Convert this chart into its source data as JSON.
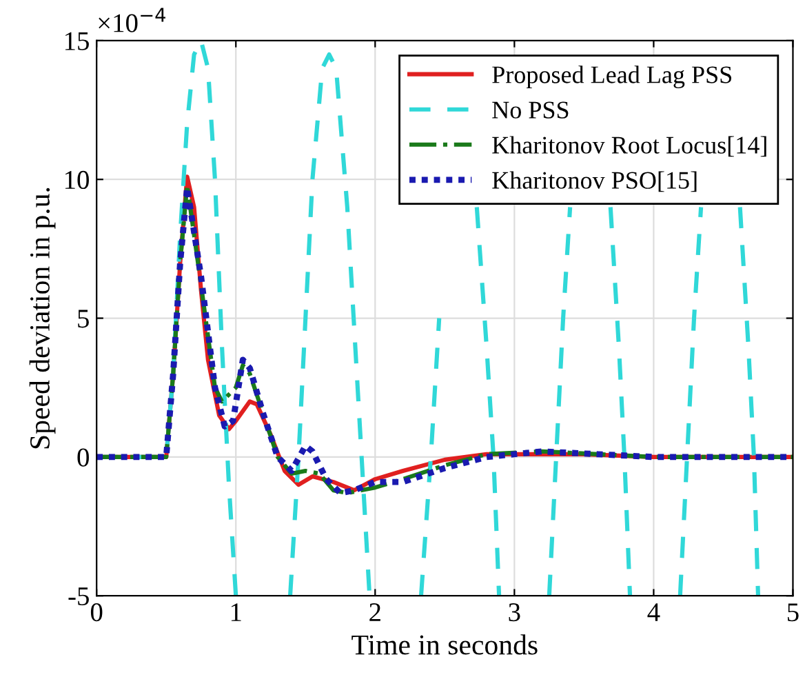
{
  "chart_data": {
    "type": "line",
    "xlabel": "Time in seconds",
    "ylabel": "Speed deviation in p.u.",
    "annotations": [
      "×10$^{−4}$"
    ],
    "xlim": [
      0,
      5
    ],
    "xticks": [
      0,
      1,
      2,
      3,
      4,
      5
    ],
    "ylim": [
      -5,
      15
    ],
    "yticks": [
      -5,
      0,
      5,
      10,
      15
    ],
    "grid": true,
    "legend": "top right",
    "marker": "none",
    "series": [
      {
        "name": "Proposed Lead Lag PSS",
        "color": "#e02020",
        "line_style": "solid",
        "x": [
          0,
          0.5,
          0.55,
          0.6,
          0.65,
          0.7,
          0.75,
          0.8,
          0.88,
          0.95,
          1.0,
          1.1,
          1.15,
          1.25,
          1.35,
          1.45,
          1.55,
          1.7,
          1.85,
          2.0,
          2.2,
          2.5,
          2.8,
          3.1,
          3.5,
          4,
          5
        ],
        "values": [
          0,
          0,
          3,
          7,
          10.1,
          9,
          6,
          3.5,
          1.5,
          1.0,
          1.3,
          2.0,
          1.9,
          0.8,
          -0.5,
          -1.0,
          -0.7,
          -0.9,
          -1.2,
          -0.8,
          -0.5,
          -0.1,
          0.1,
          0.1,
          0.1,
          0,
          0
        ]
      },
      {
        "name": "No PSS",
        "color": "#30d8d8",
        "line_style": "dashed",
        "x": [
          0,
          0.5,
          0.55,
          0.6,
          0.65,
          0.7,
          0.75,
          0.8,
          0.85,
          0.9,
          0.95,
          1.0,
          1.1,
          1.39,
          1.45,
          1.5,
          1.55,
          1.62,
          1.67,
          1.72,
          1.8,
          1.88,
          1.96,
          2.1,
          2.33,
          2.4,
          2.46,
          2.53,
          2.58,
          2.62,
          2.73,
          2.8,
          2.85,
          2.89,
          3.0,
          3.25,
          3.3,
          3.35,
          3.4,
          3.5,
          3.69,
          3.75,
          3.79,
          3.83,
          4.0,
          4.19,
          4.24,
          4.29,
          4.34,
          4.5,
          4.62,
          4.68,
          4.72,
          4.75
        ],
        "values": [
          0,
          0,
          3,
          8,
          12,
          14.5,
          15,
          14,
          10,
          4,
          -1,
          -5,
          null,
          -5,
          0,
          5,
          10,
          14,
          14.5,
          14,
          9,
          2,
          -5,
          null,
          -5,
          0,
          5,
          null,
          null,
          null,
          9,
          4,
          0,
          -5,
          null,
          -5,
          0,
          5,
          9,
          null,
          9,
          4,
          0,
          -5,
          null,
          -5,
          0,
          5,
          9,
          null,
          9,
          4,
          0,
          -5
        ]
      },
      {
        "name": "Kharitonov Root Locus[14]",
        "color": "#1a7a1a",
        "line_style": "dashdot",
        "x": [
          0,
          0.5,
          0.55,
          0.6,
          0.65,
          0.75,
          0.85,
          0.9,
          1.0,
          1.05,
          1.1,
          1.2,
          1.3,
          1.4,
          1.5,
          1.6,
          1.7,
          1.8,
          2.0,
          2.2,
          2.5,
          2.8,
          3.2,
          3.6,
          4,
          5
        ],
        "values": [
          0,
          0,
          3,
          7,
          9.8,
          6.2,
          2.5,
          2.0,
          2.5,
          3.3,
          3.0,
          1.5,
          0,
          -0.6,
          -0.5,
          -0.6,
          -1.2,
          -1.3,
          -1.1,
          -0.8,
          -0.3,
          0.1,
          0.2,
          0.1,
          0,
          0
        ]
      },
      {
        "name": "Kharitonov PSO[15]",
        "color": "#1a1ab0",
        "line_style": "dotted",
        "x": [
          0,
          0.5,
          0.55,
          0.6,
          0.65,
          0.75,
          0.85,
          0.92,
          0.98,
          1.05,
          1.1,
          1.2,
          1.3,
          1.4,
          1.5,
          1.55,
          1.65,
          1.75,
          1.85,
          2.0,
          2.2,
          2.5,
          2.8,
          3.2,
          3.6,
          4,
          5
        ],
        "values": [
          0,
          0,
          3,
          7,
          9.7,
          6.5,
          2.5,
          1.1,
          1.3,
          3.5,
          3.2,
          1.5,
          0,
          -0.5,
          0.4,
          0.2,
          -0.8,
          -1.3,
          -1.2,
          -0.9,
          -0.9,
          -0.4,
          0,
          0.2,
          0.1,
          0,
          0
        ]
      }
    ]
  }
}
